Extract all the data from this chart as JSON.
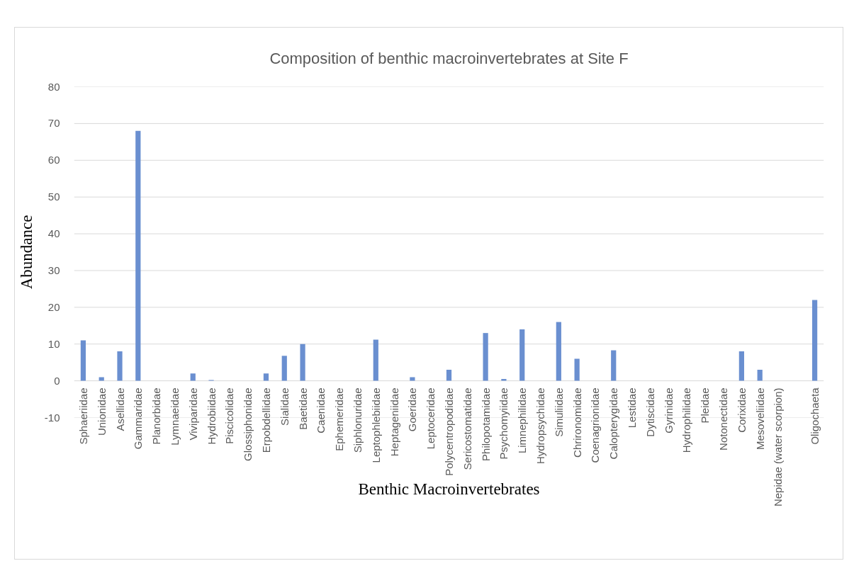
{
  "chart_data": {
    "type": "bar",
    "title": "Composition of benthic macroinvertebrates at Site F",
    "xlabel": "Benthic Macroinvertebrates",
    "ylabel": "Abundance",
    "categories": [
      "Sphaeriidae",
      "Unionidae",
      "Asellidae",
      "Gammaridae",
      "Planorbidae",
      "Lymnaeidae",
      "Viviparidae",
      "Hydrobiidae",
      "Piscicolidae",
      "Glossiphonidae",
      "Erpobdellidae",
      "Sialidae",
      "Baetidae",
      "Caenidae",
      "Ephemeridae",
      "Siphlonuridae",
      "Leptophlebiidae",
      "Heptageniidae",
      "Goeridae",
      "Leptoceridae",
      "Polycentropodidae",
      "Sericostomatidae",
      "Philopotamidae",
      "Psychomyiidae",
      "Limnephilidae",
      "Hydropsychidae",
      "Simuliidae",
      "Chrironomidae",
      "Coenagrionidae",
      "Calopterygidae",
      "Lestidae",
      "Dytiscidae",
      "Gyrinidae",
      "Hydrophilidae",
      "Pleidae",
      "Notonectidae",
      "Corixidae",
      "Mesoveliidae",
      "Nepidae (water scorpion)",
      null,
      "Oligochaeta"
    ],
    "values": [
      11,
      1,
      8,
      68,
      0,
      0,
      2,
      0.2,
      0,
      0,
      2,
      6.8,
      10,
      0,
      0,
      0,
      11.2,
      0,
      1,
      0,
      3,
      0,
      13,
      0.5,
      14,
      0,
      16,
      6,
      0,
      8.3,
      0,
      0,
      0,
      0,
      0,
      0,
      8,
      3,
      0,
      null,
      22
    ],
    "color": "#6a8fd0",
    "ylim": [
      -10,
      80
    ],
    "yticks": [
      -10,
      0,
      10,
      20,
      30,
      40,
      50,
      60,
      70,
      80
    ],
    "grid": "y"
  }
}
